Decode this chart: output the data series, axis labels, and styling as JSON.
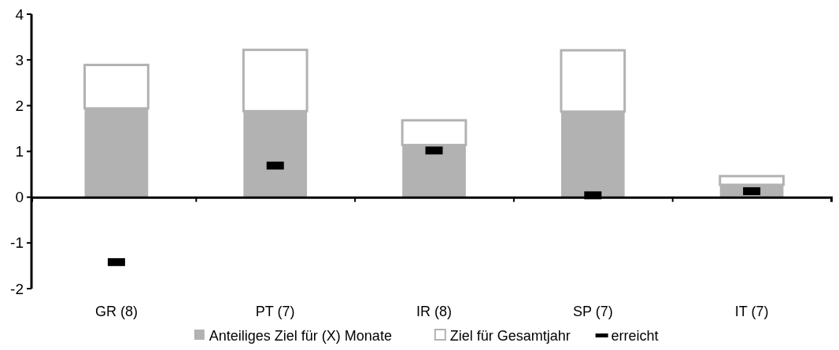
{
  "chart_data": {
    "type": "bar",
    "stacked": true,
    "categories": [
      "GR (8)",
      "PT (7)",
      "IR (8)",
      "SP (7)",
      "IT (7)"
    ],
    "series": [
      {
        "name": "Anteiliges Ziel für (X) Monate",
        "color": "#b2b2b2",
        "values": [
          1.94,
          1.88,
          1.14,
          1.87,
          0.27
        ]
      },
      {
        "name": "Ziel für Gesamtjahr",
        "color": "#ffffff",
        "values": [
          0.95,
          1.34,
          0.54,
          1.34,
          0.19
        ]
      },
      {
        "name": "erreicht",
        "type": "scatter",
        "color": "#000000",
        "values": [
          -1.42,
          0.69,
          1.02,
          0.04,
          0.13
        ]
      }
    ],
    "ylim": [
      -2,
      4
    ],
    "yticks": [
      -2,
      -1,
      0,
      1,
      2,
      3,
      4
    ],
    "grid": false,
    "legend": "bottom"
  }
}
